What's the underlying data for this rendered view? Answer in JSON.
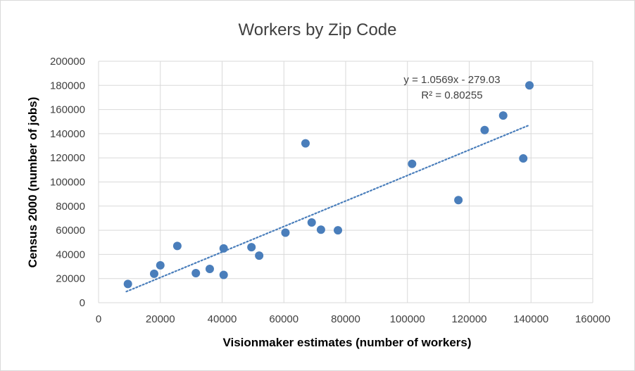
{
  "chart_data": {
    "type": "scatter",
    "title": "Workers by Zip Code",
    "xlabel": "Visionmaker estimates (number of workers)",
    "ylabel": "Census 2000 (number of jobs)",
    "xlim": [
      0,
      160000
    ],
    "ylim": [
      0,
      200000
    ],
    "x_ticks": [
      0,
      20000,
      40000,
      60000,
      80000,
      100000,
      120000,
      140000,
      160000
    ],
    "y_ticks": [
      0,
      20000,
      40000,
      60000,
      80000,
      100000,
      120000,
      140000,
      160000,
      180000,
      200000
    ],
    "x_tick_labels": [
      "0",
      "20000",
      "40000",
      "60000",
      "80000",
      "100000",
      "120000",
      "140000",
      "160000"
    ],
    "y_tick_labels": [
      "0",
      "20000",
      "40000",
      "60000",
      "80000",
      "100000",
      "120000",
      "140000",
      "160000",
      "180000",
      "200000"
    ],
    "grid": true,
    "legend": "none",
    "marker_color": "#4a7ebb",
    "trendline_color": "#4a7ebb",
    "series": [
      {
        "points": [
          {
            "x": 9500,
            "y": 15500
          },
          {
            "x": 18000,
            "y": 24000
          },
          {
            "x": 20000,
            "y": 31000
          },
          {
            "x": 25500,
            "y": 47000
          },
          {
            "x": 31500,
            "y": 24500
          },
          {
            "x": 36000,
            "y": 28000
          },
          {
            "x": 40500,
            "y": 45000
          },
          {
            "x": 40500,
            "y": 23000
          },
          {
            "x": 49500,
            "y": 46000
          },
          {
            "x": 52000,
            "y": 39000
          },
          {
            "x": 60500,
            "y": 58000
          },
          {
            "x": 67000,
            "y": 132000
          },
          {
            "x": 69000,
            "y": 66500
          },
          {
            "x": 72000,
            "y": 60500
          },
          {
            "x": 77500,
            "y": 60000
          },
          {
            "x": 101500,
            "y": 115000
          },
          {
            "x": 116500,
            "y": 85000
          },
          {
            "x": 125000,
            "y": 143000
          },
          {
            "x": 131000,
            "y": 155000
          },
          {
            "x": 137500,
            "y": 119500
          },
          {
            "x": 139500,
            "y": 180000
          }
        ]
      }
    ],
    "trendline": {
      "type": "linear",
      "slope": 1.0569,
      "intercept": -279.03,
      "x_range": [
        9000,
        139500
      ],
      "equation_label": "y = 1.0569x - 279.03",
      "r2_label": "R² = 0.80255"
    }
  }
}
